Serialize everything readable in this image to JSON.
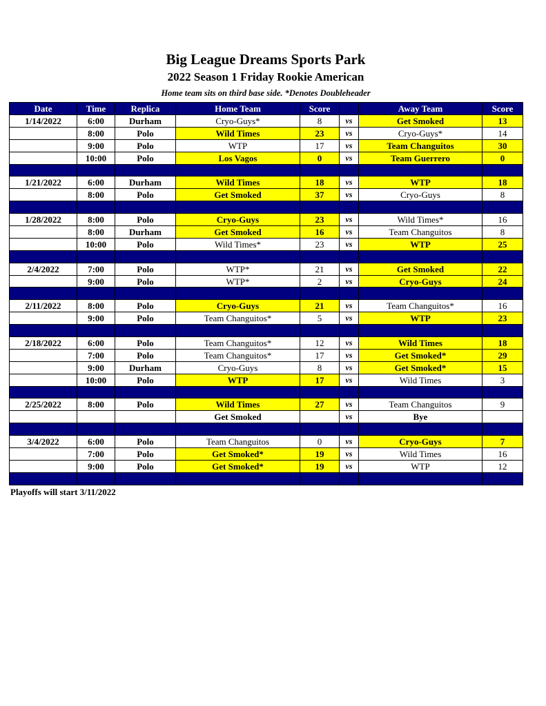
{
  "title": "Big League Dreams Sports Park",
  "subtitle": "2022 Season 1 Friday Rookie American",
  "note": "Home team sits on third base side.  *Denotes Doubleheader",
  "colors": {
    "header_bg": "#000080",
    "winner_highlight": "#ffff00"
  },
  "columns": [
    "Date",
    "Time",
    "Replica",
    "Home Team",
    "Score",
    "",
    "Away Team",
    "Score"
  ],
  "sections": [
    {
      "date": "1/14/2022",
      "games": [
        {
          "time": "6:00",
          "field": "Durham",
          "home": "Cryo-Guys*",
          "home_score": "8",
          "away": "Get Smoked",
          "away_score": "13",
          "winner": "away"
        },
        {
          "time": "8:00",
          "field": "Polo",
          "home": "Wild Times",
          "home_score": "23",
          "away": "Cryo-Guys*",
          "away_score": "14",
          "winner": "home"
        },
        {
          "time": "9:00",
          "field": "Polo",
          "home": "WTP",
          "home_score": "17",
          "away": "Team Changuitos",
          "away_score": "30",
          "winner": "away"
        },
        {
          "time": "10:00",
          "field": "Polo",
          "home": "Los Vagos",
          "home_score": "0",
          "away": "Team Guerrero",
          "away_score": "0",
          "winner": "both"
        }
      ]
    },
    {
      "date": "1/21/2022",
      "games": [
        {
          "time": "6:00",
          "field": "Durham",
          "home": "Wild Times",
          "home_score": "18",
          "away": "WTP",
          "away_score": "18",
          "winner": "both"
        },
        {
          "time": "8:00",
          "field": "Polo",
          "home": "Get Smoked",
          "home_score": "37",
          "away": "Cryo-Guys",
          "away_score": "8",
          "winner": "home"
        }
      ]
    },
    {
      "date": "1/28/2022",
      "games": [
        {
          "time": "8:00",
          "field": "Polo",
          "home": "Cryo-Guys",
          "home_score": "23",
          "away": "Wild Times*",
          "away_score": "16",
          "winner": "home"
        },
        {
          "time": "8:00",
          "field": "Durham",
          "home": "Get Smoked",
          "home_score": "16",
          "away": "Team Changuitos",
          "away_score": "8",
          "winner": "home"
        },
        {
          "time": "10:00",
          "field": "Polo",
          "home": "Wild Times*",
          "home_score": "23",
          "away": "WTP",
          "away_score": "25",
          "winner": "away"
        }
      ]
    },
    {
      "date": "2/4/2022",
      "games": [
        {
          "time": "7:00",
          "field": "Polo",
          "home": "WTP*",
          "home_score": "21",
          "away": "Get Smoked",
          "away_score": "22",
          "winner": "away"
        },
        {
          "time": "9:00",
          "field": "Polo",
          "home": "WTP*",
          "home_score": "2",
          "away": "Cryo-Guys",
          "away_score": "24",
          "winner": "away"
        }
      ]
    },
    {
      "date": "2/11/2022",
      "games": [
        {
          "time": "8:00",
          "field": "Polo",
          "home": "Cryo-Guys",
          "home_score": "21",
          "away": "Team Changuitos*",
          "away_score": "16",
          "winner": "home"
        },
        {
          "time": "9:00",
          "field": "Polo",
          "home": "Team Changuitos*",
          "home_score": "5",
          "away": "WTP",
          "away_score": "23",
          "winner": "away"
        }
      ]
    },
    {
      "date": "2/18/2022",
      "games": [
        {
          "time": "6:00",
          "field": "Polo",
          "home": "Team Changuitos*",
          "home_score": "12",
          "away": "Wild Times",
          "away_score": "18",
          "winner": "away"
        },
        {
          "time": "7:00",
          "field": "Polo",
          "home": "Team Changuitos*",
          "home_score": "17",
          "away": "Get Smoked*",
          "away_score": "29",
          "winner": "away"
        },
        {
          "time": "9:00",
          "field": "Durham",
          "home": "Cryo-Guys",
          "home_score": "8",
          "away": "Get Smoked*",
          "away_score": "15",
          "winner": "away"
        },
        {
          "time": "10:00",
          "field": "Polo",
          "home": "WTP",
          "home_score": "17",
          "away": "Wild Times",
          "away_score": "3",
          "winner": "home"
        }
      ]
    },
    {
      "date": "2/25/2022",
      "games": [
        {
          "time": "8:00",
          "field": "Polo",
          "home": "Wild Times",
          "home_score": "27",
          "away": "Team Changuitos",
          "away_score": "9",
          "winner": "home"
        },
        {
          "time": "",
          "field": "",
          "home": "Get Smoked",
          "home_score": "",
          "away": "Bye",
          "away_score": "",
          "winner": "bye"
        }
      ]
    },
    {
      "date": "3/4/2022",
      "games": [
        {
          "time": "6:00",
          "field": "Polo",
          "home": "Team Changuitos",
          "home_score": "0",
          "away": "Cryo-Guys",
          "away_score": "7",
          "winner": "away"
        },
        {
          "time": "7:00",
          "field": "Polo",
          "home": "Get Smoked*",
          "home_score": "19",
          "away": "Wild Times",
          "away_score": "16",
          "winner": "home"
        },
        {
          "time": "9:00",
          "field": "Polo",
          "home": "Get Smoked*",
          "home_score": "19",
          "away": "WTP",
          "away_score": "12",
          "winner": "home"
        }
      ]
    }
  ],
  "vs_label": "vs",
  "footer": "Playoffs will start 3/11/2022"
}
